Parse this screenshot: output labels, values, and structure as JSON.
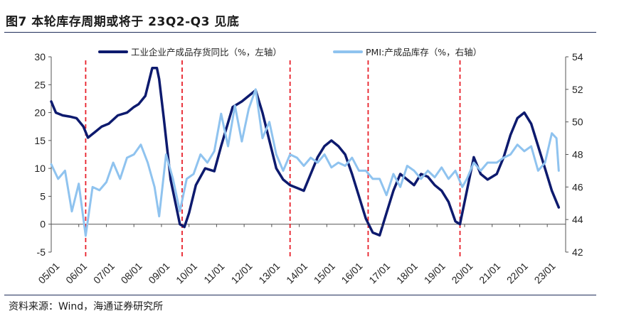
{
  "title": "图7  本轮库存周期或将于 23Q2-Q3 见底",
  "source": "资料来源：Wind，海通证券研究所",
  "colors": {
    "left_series": "#0d1a6e",
    "right_series": "#8fc3ef",
    "marker_line": "#e8202a",
    "rule": "#1f2d5a"
  },
  "chart_data": {
    "type": "line",
    "title": "",
    "x_tick_labels": [
      "05/01",
      "06/01",
      "07/01",
      "08/01",
      "09/01",
      "10/01",
      "11/01",
      "12/01",
      "13/01",
      "14/01",
      "15/01",
      "16/01",
      "17/01",
      "18/01",
      "19/01",
      "20/01",
      "21/01",
      "22/01",
      "23/01"
    ],
    "y_left": {
      "range": [
        -5,
        30
      ],
      "ticks": [
        -5,
        0,
        5,
        10,
        15,
        20,
        25,
        30
      ]
    },
    "y_right": {
      "range": [
        42,
        54
      ],
      "ticks": [
        42,
        44,
        46,
        48,
        50,
        52,
        54
      ]
    },
    "vertical_markers": [
      "2006-04",
      "2009-10",
      "2013-09",
      "2016-07",
      "2019-11"
    ],
    "grid": false,
    "legend_position": "top",
    "series": [
      {
        "name": "工业企业产成品存货同比（%，左轴）",
        "axis": "left",
        "points": [
          [
            "2005-01",
            22
          ],
          [
            "2005-03",
            20
          ],
          [
            "2005-06",
            19.5
          ],
          [
            "2005-09",
            19.3
          ],
          [
            "2005-12",
            19
          ],
          [
            "2006-03",
            17.5
          ],
          [
            "2006-05",
            15.5
          ],
          [
            "2006-08",
            16.5
          ],
          [
            "2006-11",
            17.5
          ],
          [
            "2007-02",
            18
          ],
          [
            "2007-06",
            19.5
          ],
          [
            "2007-10",
            20
          ],
          [
            "2008-01",
            21
          ],
          [
            "2008-03",
            21.5
          ],
          [
            "2008-06",
            23
          ],
          [
            "2008-09",
            28
          ],
          [
            "2008-11",
            28
          ],
          [
            "2008-12",
            26
          ],
          [
            "2009-02",
            19
          ],
          [
            "2009-05",
            8
          ],
          [
            "2009-09",
            0
          ],
          [
            "2009-11",
            -0.5
          ],
          [
            "2010-01",
            2
          ],
          [
            "2010-04",
            7
          ],
          [
            "2010-08",
            10
          ],
          [
            "2010-12",
            9.5
          ],
          [
            "2011-03",
            14
          ],
          [
            "2011-08",
            21
          ],
          [
            "2011-12",
            22
          ],
          [
            "2012-03",
            23
          ],
          [
            "2012-06",
            24
          ],
          [
            "2012-09",
            20
          ],
          [
            "2012-12",
            15
          ],
          [
            "2013-03",
            10
          ],
          [
            "2013-06",
            8
          ],
          [
            "2013-09",
            7
          ],
          [
            "2013-12",
            6.5
          ],
          [
            "2014-03",
            6
          ],
          [
            "2014-06",
            9
          ],
          [
            "2014-09",
            12
          ],
          [
            "2014-12",
            14
          ],
          [
            "2015-03",
            15
          ],
          [
            "2015-06",
            14
          ],
          [
            "2015-09",
            12.5
          ],
          [
            "2015-12",
            9
          ],
          [
            "2016-03",
            5
          ],
          [
            "2016-06",
            1
          ],
          [
            "2016-09",
            -1.5
          ],
          [
            "2016-12",
            -2
          ],
          [
            "2017-03",
            2
          ],
          [
            "2017-06",
            6
          ],
          [
            "2017-09",
            9
          ],
          [
            "2017-12",
            8
          ],
          [
            "2018-03",
            7
          ],
          [
            "2018-06",
            9
          ],
          [
            "2018-09",
            8.5
          ],
          [
            "2018-12",
            7
          ],
          [
            "2019-03",
            6
          ],
          [
            "2019-06",
            4
          ],
          [
            "2019-09",
            0.5
          ],
          [
            "2019-11",
            0
          ],
          [
            "2020-02",
            6
          ],
          [
            "2020-05",
            12
          ],
          [
            "2020-08",
            9
          ],
          [
            "2020-11",
            8
          ],
          [
            "2021-03",
            9
          ],
          [
            "2021-06",
            12
          ],
          [
            "2021-09",
            16
          ],
          [
            "2021-12",
            19
          ],
          [
            "2022-03",
            20
          ],
          [
            "2022-06",
            18
          ],
          [
            "2022-09",
            14
          ],
          [
            "2022-12",
            10
          ],
          [
            "2023-03",
            6
          ],
          [
            "2023-06",
            3
          ]
        ]
      },
      {
        "name": "PMI:产成品库存（%，右轴）",
        "axis": "right",
        "points": [
          [
            "2005-01",
            47.4
          ],
          [
            "2005-04",
            46.5
          ],
          [
            "2005-07",
            47
          ],
          [
            "2005-10",
            44.5
          ],
          [
            "2006-01",
            46.2
          ],
          [
            "2006-04",
            43
          ],
          [
            "2006-07",
            46
          ],
          [
            "2006-10",
            45.8
          ],
          [
            "2007-01",
            46.3
          ],
          [
            "2007-04",
            47.5
          ],
          [
            "2007-07",
            46.5
          ],
          [
            "2007-10",
            47.8
          ],
          [
            "2008-01",
            48
          ],
          [
            "2008-04",
            48.6
          ],
          [
            "2008-07",
            47.5
          ],
          [
            "2008-10",
            46
          ],
          [
            "2008-12",
            44.2
          ],
          [
            "2009-03",
            48
          ],
          [
            "2009-06",
            46.5
          ],
          [
            "2009-09",
            44.5
          ],
          [
            "2009-12",
            46.5
          ],
          [
            "2010-03",
            46.8
          ],
          [
            "2010-06",
            48
          ],
          [
            "2010-09",
            47.5
          ],
          [
            "2010-12",
            48.2
          ],
          [
            "2011-03",
            50.5
          ],
          [
            "2011-06",
            48.5
          ],
          [
            "2011-09",
            51
          ],
          [
            "2011-12",
            48.8
          ],
          [
            "2012-03",
            50.8
          ],
          [
            "2012-06",
            52
          ],
          [
            "2012-09",
            49
          ],
          [
            "2012-12",
            50
          ],
          [
            "2013-03",
            48
          ],
          [
            "2013-06",
            47
          ],
          [
            "2013-09",
            48
          ],
          [
            "2013-12",
            47.8
          ],
          [
            "2014-03",
            47.3
          ],
          [
            "2014-06",
            47.8
          ],
          [
            "2014-09",
            47.5
          ],
          [
            "2014-12",
            48
          ],
          [
            "2015-03",
            47.2
          ],
          [
            "2015-06",
            47.5
          ],
          [
            "2015-09",
            47.3
          ],
          [
            "2015-12",
            47.8
          ],
          [
            "2016-03",
            47
          ],
          [
            "2016-06",
            47
          ],
          [
            "2016-09",
            46.5
          ],
          [
            "2016-12",
            46.5
          ],
          [
            "2017-03",
            45.5
          ],
          [
            "2017-06",
            46.8
          ],
          [
            "2017-09",
            46
          ],
          [
            "2017-12",
            47.3
          ],
          [
            "2018-03",
            47
          ],
          [
            "2018-06",
            46.5
          ],
          [
            "2018-09",
            47
          ],
          [
            "2018-12",
            46.6
          ],
          [
            "2019-03",
            47.2
          ],
          [
            "2019-06",
            46.5
          ],
          [
            "2019-09",
            47
          ],
          [
            "2019-12",
            46
          ],
          [
            "2020-02",
            46.5
          ],
          [
            "2020-05",
            47.5
          ],
          [
            "2020-08",
            47
          ],
          [
            "2020-11",
            47.5
          ],
          [
            "2021-03",
            47.5
          ],
          [
            "2021-06",
            47.8
          ],
          [
            "2021-09",
            48
          ],
          [
            "2021-12",
            48.6
          ],
          [
            "2022-03",
            48.2
          ],
          [
            "2022-06",
            48.5
          ],
          [
            "2022-09",
            47
          ],
          [
            "2022-12",
            47.5
          ],
          [
            "2023-03",
            49.3
          ],
          [
            "2023-05",
            49
          ],
          [
            "2023-06",
            47
          ]
        ]
      }
    ]
  }
}
